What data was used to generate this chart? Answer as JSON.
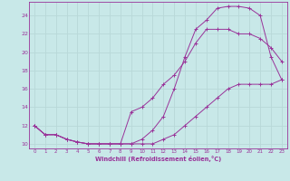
{
  "background_color": "#c8e8e8",
  "grid_color": "#aacccc",
  "line_color": "#993399",
  "xlabel": "Windchill (Refroidissement éolien,°C)",
  "xlim": [
    -0.5,
    23.5
  ],
  "ylim": [
    9.5,
    25.5
  ],
  "xticks": [
    0,
    1,
    2,
    3,
    4,
    5,
    6,
    7,
    8,
    9,
    10,
    11,
    12,
    13,
    14,
    15,
    16,
    17,
    18,
    19,
    20,
    21,
    22,
    23
  ],
  "yticks": [
    10,
    12,
    14,
    16,
    18,
    20,
    22,
    24
  ],
  "line1_x": [
    0,
    1,
    2,
    3,
    4,
    5,
    6,
    7,
    8,
    9,
    10,
    11,
    12,
    13,
    14,
    15,
    16,
    17,
    18,
    19,
    20,
    21,
    22,
    23
  ],
  "line1_y": [
    12.0,
    11.0,
    11.0,
    10.5,
    10.2,
    10.0,
    10.0,
    10.0,
    10.0,
    10.0,
    10.5,
    11.5,
    13.0,
    16.0,
    19.5,
    22.5,
    23.5,
    24.8,
    25.0,
    25.0,
    24.8,
    24.0,
    19.5,
    17.0
  ],
  "line2_x": [
    0,
    1,
    2,
    3,
    4,
    5,
    6,
    7,
    8,
    9,
    10,
    11,
    12,
    13,
    14,
    15,
    16,
    17,
    18,
    19,
    20,
    21,
    22,
    23
  ],
  "line2_y": [
    12.0,
    11.0,
    11.0,
    10.5,
    10.2,
    10.0,
    10.0,
    10.0,
    10.0,
    13.5,
    14.0,
    15.0,
    16.5,
    17.5,
    19.0,
    21.0,
    22.5,
    22.5,
    22.5,
    22.0,
    22.0,
    21.5,
    20.5,
    19.0
  ],
  "line3_x": [
    0,
    1,
    2,
    3,
    4,
    5,
    6,
    7,
    8,
    9,
    10,
    11,
    12,
    13,
    14,
    15,
    16,
    17,
    18,
    19,
    20,
    21,
    22,
    23
  ],
  "line3_y": [
    12.0,
    11.0,
    11.0,
    10.5,
    10.2,
    10.0,
    10.0,
    10.0,
    10.0,
    10.0,
    10.0,
    10.0,
    10.5,
    11.0,
    12.0,
    13.0,
    14.0,
    15.0,
    16.0,
    16.5,
    16.5,
    16.5,
    16.5,
    17.0
  ]
}
